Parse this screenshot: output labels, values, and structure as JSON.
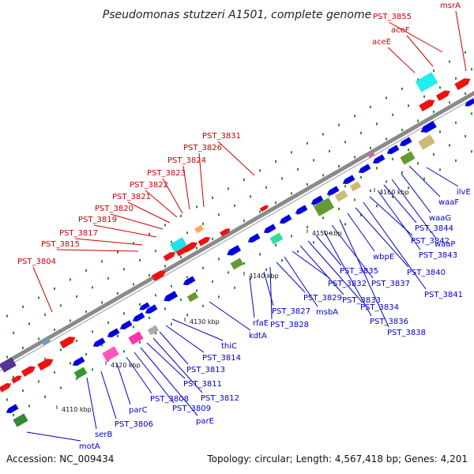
{
  "title": "Pseudomonas stutzeri A1501, complete genome",
  "accession_text": "Accession: NC_009434",
  "topology_text": "Topology: circular; Length: 4,567,418 bp; Genes: 4,201",
  "scale_ticks": [
    "4110 kbp",
    "4120 kbp",
    "4130 kbp",
    "4140 kbp",
    "4150 kbp",
    "4160 kbp"
  ],
  "top_labels": [
    "PST_3804",
    "PST_3815",
    "PST_3817",
    "PST_3819",
    "PST_3820",
    "PST_3821",
    "PST_3822",
    "PST_3823",
    "PST_3824",
    "PST_3826",
    "PST_3831",
    "aceE",
    "aceF",
    "PST_3855",
    "msrA"
  ],
  "bottom_labels": [
    "motA",
    "serB",
    "PST_3806",
    "parC",
    "PST_3808",
    "PST_3809",
    "parE",
    "PST_3811",
    "PST_3812",
    "PST_3813",
    "PST_3814",
    "thiC",
    "kdtA",
    "rfaE",
    "PST_3827",
    "PST_3828",
    "PST_3829",
    "msbA",
    "PST_3832",
    "PST_3833",
    "PST_3834",
    "PST_3835",
    "PST_3836",
    "PST_3837",
    "PST_3838",
    "wbpE",
    "PST_3840",
    "PST_3841",
    "PST_3842",
    "PST_3843",
    "PST_3844",
    "waaP",
    "waaG",
    "waaF",
    "ilvE"
  ],
  "colors": {
    "top_label": "#cc0000",
    "bottom_label": "#0000cc",
    "gene_forward": "#ee1111",
    "gene_reverse": "#0000dd",
    "backbone": "#8a8a8a",
    "dots": "#2a8a2a"
  }
}
